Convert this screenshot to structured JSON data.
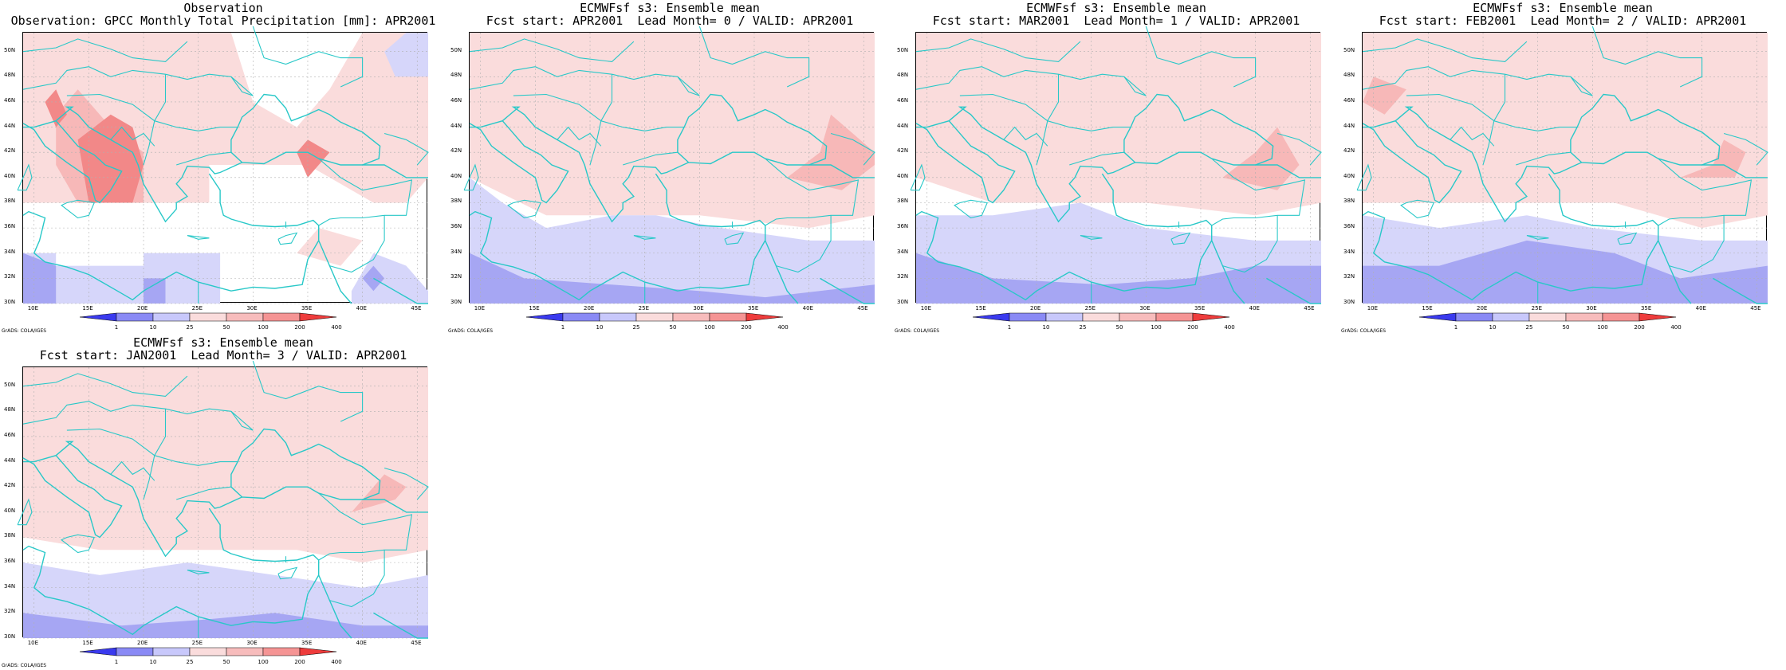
{
  "panels": [
    {
      "title1": "Observation",
      "title2": "Observation: GPCC Monthly Total Precipitation [mm]: APR2001",
      "variant": "obs"
    },
    {
      "title1": "ECMWFsf s3: Ensemble mean",
      "title2": "Fcst start: APR2001  Lead Month= 0 / VALID: APR2001",
      "variant": "f0"
    },
    {
      "title1": "ECMWFsf s3: Ensemble mean",
      "title2": "Fcst start: MAR2001  Lead Month= 1 / VALID: APR2001",
      "variant": "f1"
    },
    {
      "title1": "ECMWFsf s3: Ensemble mean",
      "title2": "Fcst start: FEB2001  Lead Month= 2 / VALID: APR2001",
      "variant": "f2"
    },
    {
      "title1": "ECMWFsf s3: Ensemble mean",
      "title2": "Fcst start: JAN2001  Lead Month= 3 / VALID: APR2001",
      "variant": "f3"
    }
  ],
  "axes": {
    "lat_labels": [
      "30N",
      "32N",
      "34N",
      "36N",
      "38N",
      "40N",
      "42N",
      "44N",
      "46N",
      "48N",
      "50N"
    ],
    "lon_labels": [
      "10E",
      "15E",
      "20E",
      "25E",
      "30E",
      "35E",
      "40E",
      "45E"
    ],
    "lat_range": [
      30,
      51.5
    ],
    "lon_range": [
      9,
      46
    ]
  },
  "colorbar": {
    "labels": [
      "1",
      "10",
      "25",
      "50",
      "100",
      "200",
      "400"
    ],
    "colors": [
      "#3a3aee",
      "#8a8af5",
      "#c8c8fb",
      "#fadcdc",
      "#f7bcbc",
      "#f59494",
      "#ee3c3c"
    ]
  },
  "credit": "GrADS: COLA/IGES",
  "colors": {
    "coast": "#28c8c8",
    "pink_light": "#fadcdc",
    "pink_mid": "#f7b8b8",
    "red": "#f28888",
    "blue_light": "#d6d6fa",
    "blue_mid": "#a6a6f3",
    "blue_dark": "#7a7aee"
  }
}
